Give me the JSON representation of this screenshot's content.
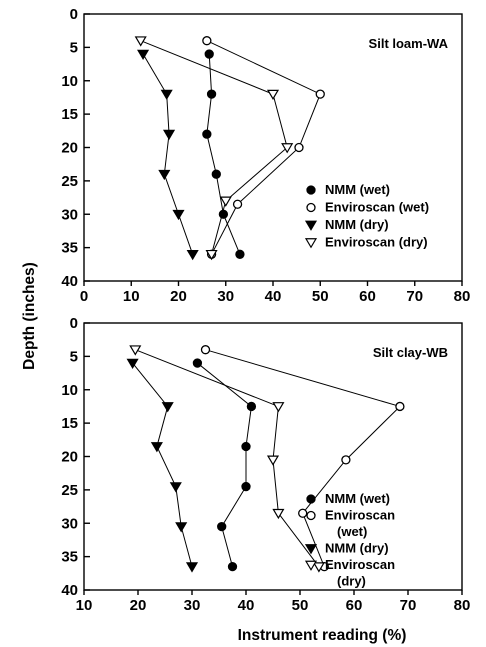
{
  "chart_data": [
    {
      "type": "line",
      "title": "Silt loam-WA",
      "xlabel": "",
      "ylabel": "Depth (inches)",
      "xlim": [
        0,
        80
      ],
      "ylim": [
        0,
        40
      ],
      "y_inverted": true,
      "x_ticks": [
        "0",
        "10",
        "20",
        "30",
        "40",
        "50",
        "60",
        "70",
        "80"
      ],
      "y_ticks": [
        "0",
        "5",
        "10",
        "15",
        "20",
        "25",
        "30",
        "35",
        "40"
      ],
      "legend_position": "bottom-right",
      "grid": false,
      "series": [
        {
          "name": "NMM (wet)",
          "marker": "filled-circle",
          "points": [
            [
              26.5,
              6
            ],
            [
              27,
              12
            ],
            [
              26,
              18
            ],
            [
              28,
              24
            ],
            [
              29.5,
              30
            ],
            [
              33,
              36
            ]
          ]
        },
        {
          "name": "Enviroscan (wet)",
          "marker": "open-circle",
          "points": [
            [
              26,
              4
            ],
            [
              50,
              12
            ],
            [
              45.5,
              20
            ],
            [
              32.5,
              28.5
            ],
            [
              27,
              36
            ]
          ]
        },
        {
          "name": "NMM (dry)",
          "marker": "filled-triangle",
          "points": [
            [
              12.5,
              6
            ],
            [
              17.5,
              12
            ],
            [
              18,
              18
            ],
            [
              17,
              24
            ],
            [
              20,
              30
            ],
            [
              23,
              36
            ]
          ]
        },
        {
          "name": "Enviroscan (dry)",
          "marker": "open-triangle",
          "points": [
            [
              12,
              4
            ],
            [
              40,
              12
            ],
            [
              43,
              20
            ],
            [
              30,
              28
            ],
            [
              27,
              36
            ]
          ]
        }
      ]
    },
    {
      "type": "line",
      "title": "Silt clay-WB",
      "xlabel": "Instrument reading (%)",
      "ylabel": "Depth (inches)",
      "xlim": [
        10,
        80
      ],
      "ylim": [
        0,
        40
      ],
      "y_inverted": true,
      "x_ticks": [
        "10",
        "20",
        "30",
        "40",
        "50",
        "60",
        "70",
        "80"
      ],
      "y_ticks": [
        "0",
        "5",
        "10",
        "15",
        "20",
        "25",
        "30",
        "35",
        "40"
      ],
      "legend_position": "bottom-right",
      "grid": false,
      "series": [
        {
          "name": "NMM (wet)",
          "legend_lines": [
            "NMM (wet)"
          ],
          "marker": "filled-circle",
          "points": [
            [
              31,
              6
            ],
            [
              41,
              12.5
            ],
            [
              40,
              18.5
            ],
            [
              40,
              24.5
            ],
            [
              35.5,
              30.5
            ],
            [
              37.5,
              36.5
            ]
          ]
        },
        {
          "name": "Enviroscan (wet)",
          "legend_lines": [
            "Enviroscan",
            "(wet)"
          ],
          "marker": "open-circle",
          "points": [
            [
              32.5,
              4
            ],
            [
              68.5,
              12.5
            ],
            [
              58.5,
              20.5
            ],
            [
              50.5,
              28.5
            ],
            [
              54.5,
              36.5
            ]
          ]
        },
        {
          "name": "NMM (dry)",
          "legend_lines": [
            "NMM (dry)"
          ],
          "marker": "filled-triangle",
          "points": [
            [
              19,
              6
            ],
            [
              25.5,
              12.5
            ],
            [
              23.5,
              18.5
            ],
            [
              27,
              24.5
            ],
            [
              28,
              30.5
            ],
            [
              30,
              36.5
            ]
          ]
        },
        {
          "name": "Enviroscan (dry)",
          "legend_lines": [
            "Enviroscan",
            "(dry)"
          ],
          "marker": "open-triangle",
          "points": [
            [
              19.5,
              4
            ],
            [
              46,
              12.5
            ],
            [
              45,
              20.5
            ],
            [
              46,
              28.5
            ],
            [
              53.5,
              36.5
            ]
          ]
        }
      ]
    }
  ],
  "shared": {
    "ylabel": "Depth (inches)",
    "xlabel": "Instrument reading (%)"
  }
}
